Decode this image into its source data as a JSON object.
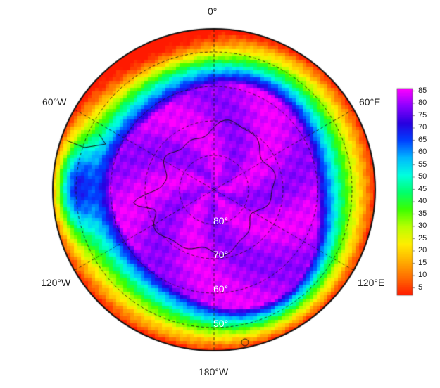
{
  "meridian_labels": {
    "top": "0°",
    "upper_left": "60°W",
    "upper_right": "60°E",
    "lower_left": "120°W",
    "lower_right": "120°E",
    "bottom": "180°W"
  },
  "latitude_labels": [
    "80°",
    "70°",
    "60°",
    "50°"
  ],
  "colorbar": {
    "ticks": [
      85,
      80,
      75,
      70,
      65,
      60,
      55,
      50,
      45,
      40,
      35,
      30,
      25,
      20,
      15,
      10,
      5
    ],
    "range": [
      2,
      86
    ],
    "colors": [
      "#ff1a00",
      "#ff6a00",
      "#ffb000",
      "#ffef00",
      "#b9ff00",
      "#3cff00",
      "#00ff6e",
      "#00ffe0",
      "#00b8ff",
      "#0040ff",
      "#2800e0",
      "#8a00ff",
      "#ff00ff"
    ]
  },
  "field": {
    "description_colors": "ice-concentration style magenta core over antarctica fading to red at 50S"
  }
}
